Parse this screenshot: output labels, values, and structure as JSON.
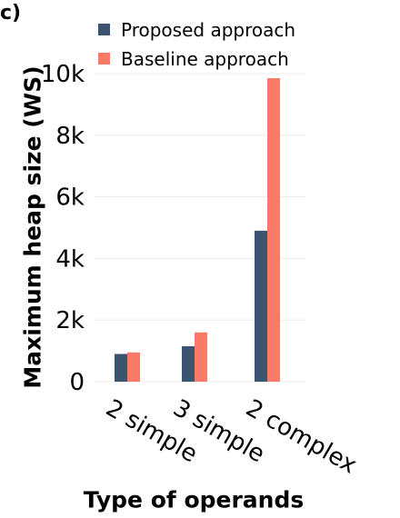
{
  "panel_label": "c)",
  "chart_data": {
    "type": "bar",
    "xlabel": "Type of operands",
    "ylabel": "Maximum heap size (WS)",
    "categories": [
      "2 simple",
      "3 simple",
      "2 complex"
    ],
    "series": [
      {
        "name": "Proposed approach",
        "color": "#3b5570",
        "values": [
          900,
          1150,
          4900
        ]
      },
      {
        "name": "Baseline approach",
        "color": "#fa7a68",
        "values": [
          950,
          1600,
          9850
        ]
      }
    ],
    "ylim": [
      0,
      10500
    ],
    "yticks": [
      0,
      2000,
      4000,
      6000,
      8000,
      10000
    ],
    "ytick_labels": [
      "0",
      "2k",
      "4k",
      "6k",
      "8k",
      "10k"
    ],
    "grid": true,
    "legend_position": "top"
  }
}
